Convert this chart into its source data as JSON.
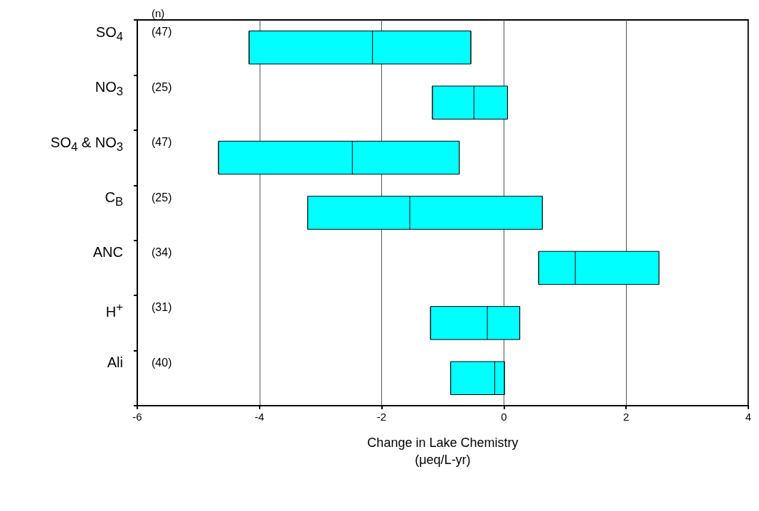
{
  "chart_data": {
    "type": "box",
    "orientation": "horizontal",
    "xlabel": "Change in Lake Chemistry\n(μeq/L-yr)",
    "categories": [
      "SO$_{4}$",
      "NO$_{3}$",
      "SO$_{4}$ & NO$_{3}$",
      "C$_{B}$",
      "ANC",
      "H$^{+}$",
      "Ali"
    ],
    "boxes": [
      {
        "low": -4.17,
        "q1": -4.17,
        "median": -2.15,
        "q3": -0.54,
        "high": -0.54
      },
      {
        "low": -1.17,
        "q1": -1.17,
        "median": -0.49,
        "q3": 0.06,
        "high": 0.06
      },
      {
        "low": -4.67,
        "q1": -4.67,
        "median": -2.48,
        "q3": -0.73,
        "high": -0.73
      },
      {
        "low": -3.21,
        "q1": -3.21,
        "median": -1.54,
        "q3": 0.63,
        "high": 0.63
      },
      {
        "low": 0.57,
        "q1": 0.57,
        "median": 1.17,
        "q3": 2.54,
        "high": 2.54
      },
      {
        "low": -1.2,
        "q1": -1.2,
        "median": -0.27,
        "q3": 0.26,
        "high": 0.26
      },
      {
        "low": -0.87,
        "q1": -0.87,
        "median": -0.15,
        "q3": 0.01,
        "high": 0.01
      }
    ],
    "color": "#00ffff",
    "xlim": [
      -6,
      4
    ],
    "xticks": [
      -6,
      -4,
      -2,
      0,
      2,
      4
    ],
    "grid": "x",
    "annotations": [
      "(n)",
      "(47)",
      "(25)",
      "(47)",
      "(25)",
      "(34)",
      "(31)",
      "(40)"
    ]
  }
}
